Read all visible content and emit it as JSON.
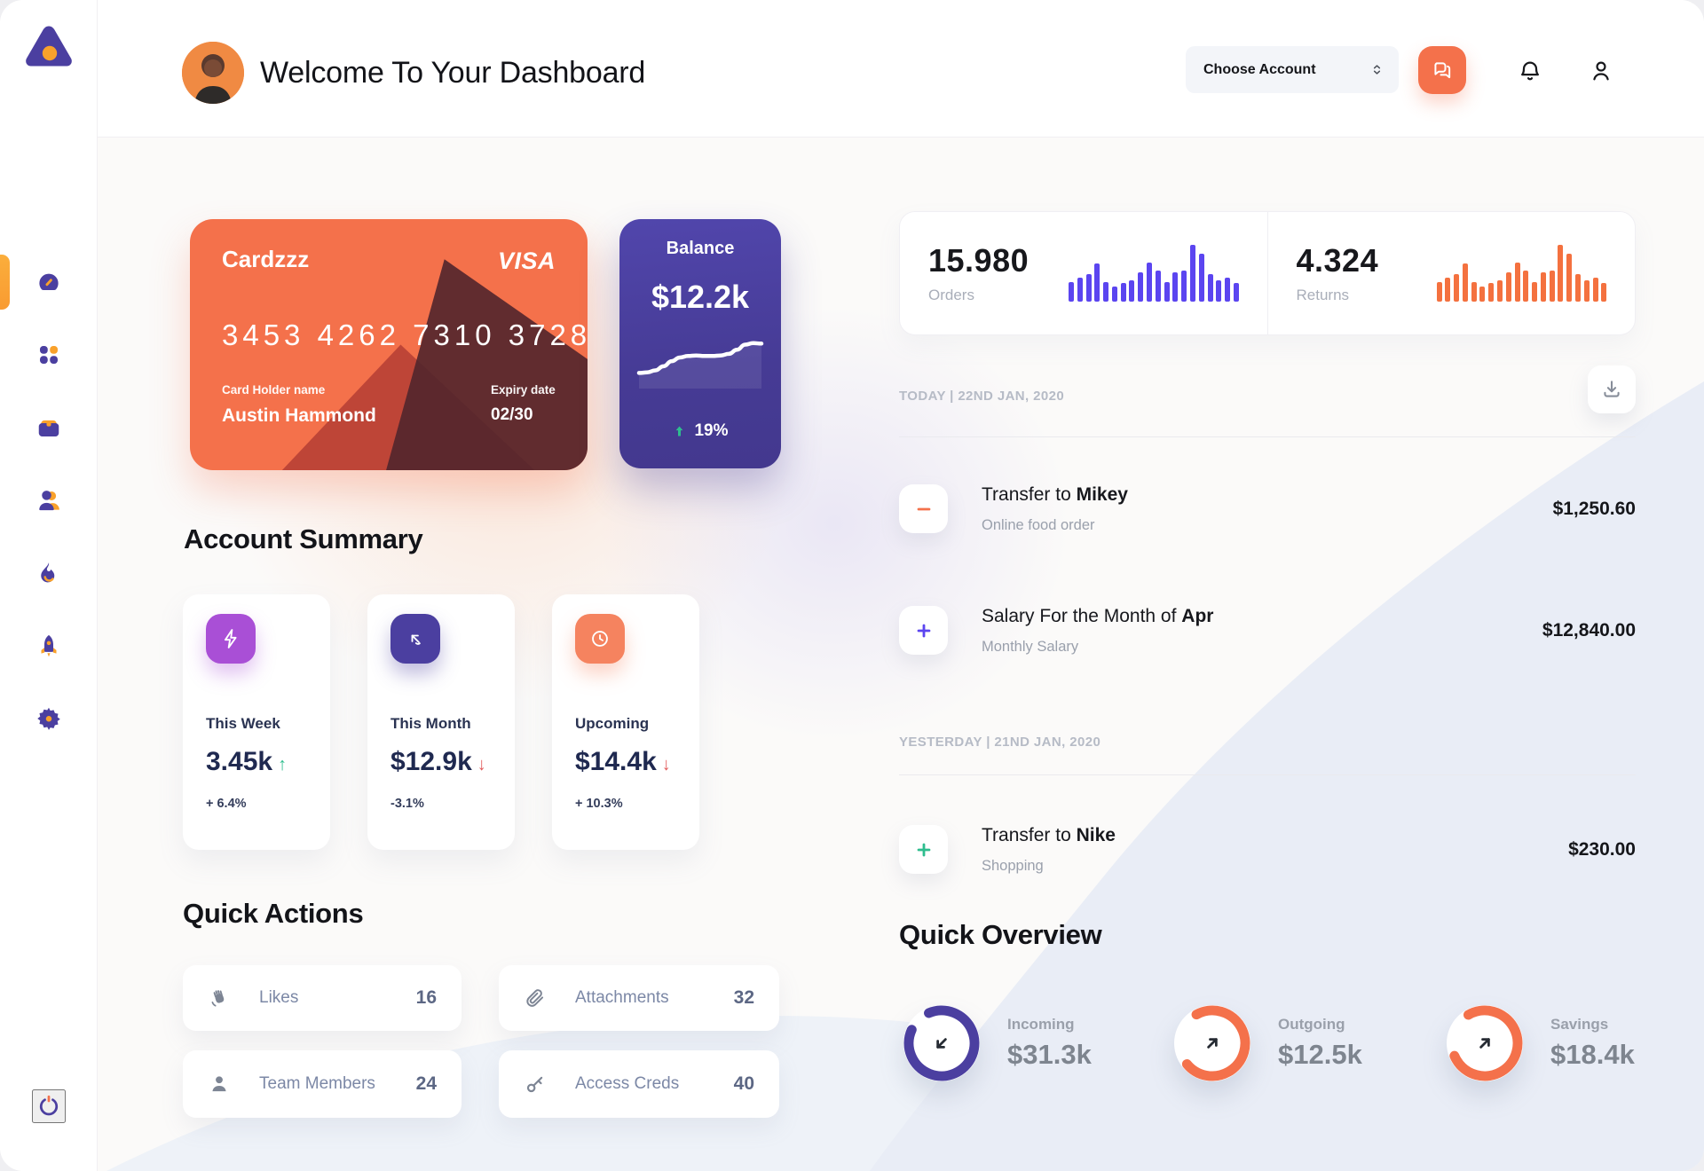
{
  "colors": {
    "bg": "#FBFAF9",
    "orange": "#F4714B",
    "orange_accent": "#F9A12B",
    "purple": "#4B3FA0",
    "purple_bright": "#5B45F0",
    "violet": "#A94FD6",
    "peach": "#F5835F",
    "green": "#2EBD8E",
    "red": "#E25C5C",
    "wave": "#E9EDF6"
  },
  "sidebar": {
    "items": [
      "dashboard",
      "apps",
      "work",
      "team",
      "activity",
      "launch",
      "settings"
    ],
    "active_item": "dashboard",
    "power": "power"
  },
  "header": {
    "title": "Welcome To Your Dashboard",
    "account_select_label": "Choose Account"
  },
  "credit_card": {
    "name": "Cardzzz",
    "brand": "VISA",
    "number": "3453 4262 7310 3728",
    "holder_label": "Card Holder name",
    "holder": "Austin Hammond",
    "expiry_label": "Expiry date",
    "expiry": "02/30"
  },
  "balance_card": {
    "label": "Balance",
    "value": "$12.2k",
    "delta": "19%"
  },
  "stats": {
    "orders": {
      "value": "15.980",
      "label": "Orders"
    },
    "returns": {
      "value": "4.324",
      "label": "Returns"
    }
  },
  "transactions": {
    "groups": [
      {
        "date_label": "TODAY | 22ND JAN, 2020",
        "rows": [
          {
            "icon": "minus",
            "title_prefix": "Transfer to ",
            "title_bold": "Mikey",
            "subtitle": "Online food order",
            "amount": "$1,250.60"
          },
          {
            "icon": "plus",
            "title_prefix": "Salary For the Month of ",
            "title_bold": "Apr",
            "subtitle": "Monthly Salary",
            "amount": "$12,840.00"
          }
        ]
      },
      {
        "date_label": "YESTERDAY | 21ND JAN, 2020",
        "rows": [
          {
            "icon": "plus",
            "title_prefix": "Transfer to ",
            "title_bold": "Nike",
            "subtitle": "Shopping",
            "amount": "$230.00"
          }
        ]
      }
    ]
  },
  "account_summary": {
    "title": "Account Summary",
    "cards": [
      {
        "label": "This Week",
        "value": "3.45k",
        "arrow": "↑",
        "delta": "+ 6.4%",
        "icon": "lightning",
        "icon_bg": "#A94FD6"
      },
      {
        "label": "This Month",
        "value": "$12.9k",
        "arrow": "↓",
        "delta": "-3.1%",
        "icon": "arrow-up-left",
        "icon_bg": "#4B3FA0"
      },
      {
        "label": "Upcoming",
        "value": "$14.4k",
        "arrow": "↓",
        "delta": "+ 10.3%",
        "icon": "clock",
        "icon_bg": "#F5835F"
      }
    ]
  },
  "quick_actions": {
    "title": "Quick Actions",
    "items": [
      {
        "label": "Likes",
        "count": "16",
        "icon": "clap"
      },
      {
        "label": "Attachments",
        "count": "32",
        "icon": "paperclip"
      },
      {
        "label": "Team Members",
        "count": "24",
        "icon": "person"
      },
      {
        "label": "Access Creds",
        "count": "40",
        "icon": "key"
      }
    ]
  },
  "quick_overview": {
    "title": "Quick Overview"
  },
  "chart_data": [
    {
      "type": "bar",
      "title": "Orders activity sparkbars",
      "values": [
        38,
        45,
        52,
        72,
        38,
        28,
        36,
        40,
        55,
        75,
        58,
        38,
        55,
        58,
        108,
        92,
        52,
        40,
        45,
        36
      ],
      "ylim": [
        0,
        110
      ],
      "color": "#5B45F0"
    },
    {
      "type": "bar",
      "title": "Returns activity sparkbars",
      "values": [
        38,
        45,
        52,
        72,
        38,
        28,
        36,
        40,
        55,
        75,
        58,
        38,
        55,
        58,
        108,
        92,
        52,
        40,
        45,
        36
      ],
      "ylim": [
        0,
        110
      ],
      "color": "#F4713F"
    },
    {
      "type": "line",
      "title": "Balance trend",
      "values": [
        20,
        21,
        25,
        33,
        43,
        50,
        53,
        54,
        53,
        53,
        54,
        57,
        65,
        75,
        78,
        77
      ],
      "ylim": [
        0,
        100
      ]
    },
    {
      "type": "donut",
      "title": "Quick Overview rings",
      "series": [
        {
          "name": "Incoming",
          "value_label": "$31.3k",
          "percent": 88,
          "color": "#4B3FA0",
          "arrow": "in"
        },
        {
          "name": "Outgoing",
          "value_label": "$12.5k",
          "percent": 72,
          "color": "#F4714B",
          "arrow": "out"
        },
        {
          "name": "Savings",
          "value_label": "$18.4k",
          "percent": 77,
          "color": "#F4714B",
          "arrow": "out"
        }
      ]
    }
  ]
}
